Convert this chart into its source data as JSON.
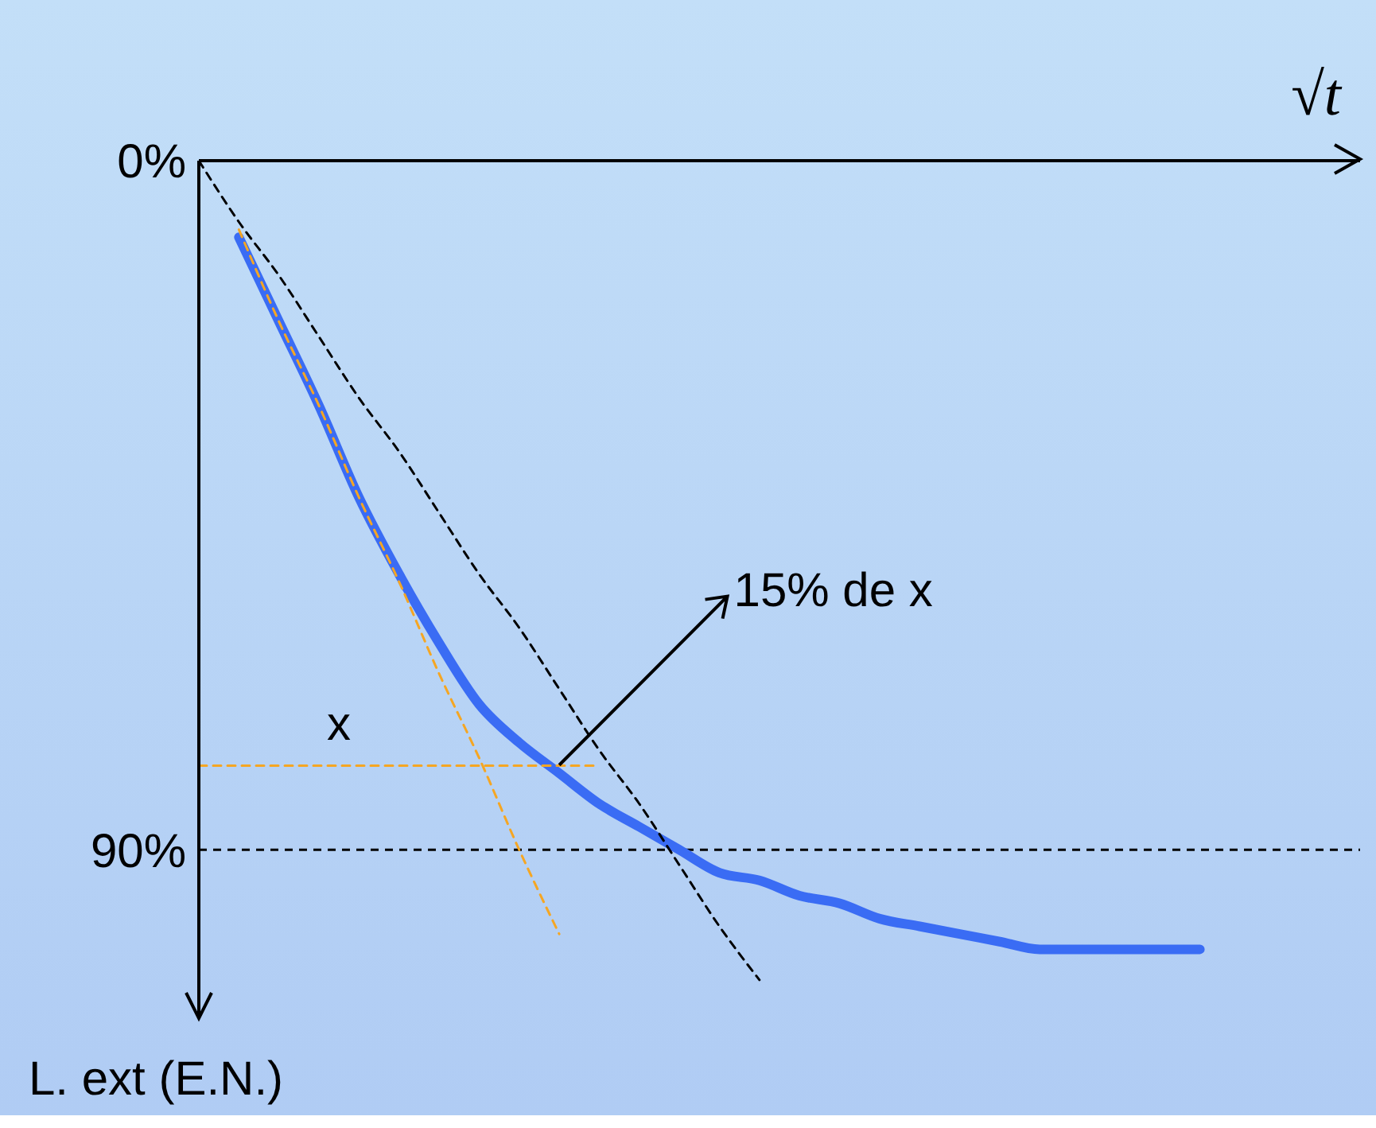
{
  "chart_data": {
    "type": "line",
    "xlabel": "√t",
    "ylabel": "L. ext (E.N.)",
    "categories": [
      null,
      null,
      null,
      null,
      null,
      null,
      null,
      null,
      null,
      null,
      null,
      null,
      null,
      null,
      null,
      null,
      null,
      null,
      null,
      null,
      null,
      null,
      null,
      null,
      null,
      null,
      null,
      null,
      null,
      null
    ],
    "series": [
      {
        "color": "#3a6cf4",
        "line_style": "solid",
        "values": [
          null,
          10,
          21,
          32,
          44,
          54,
          63,
          71,
          76,
          80,
          84,
          87,
          90,
          93,
          94,
          96,
          97,
          99,
          100,
          101,
          102,
          103,
          103,
          103,
          103,
          103,
          null,
          null,
          null,
          null
        ]
      },
      {
        "color": "#f5a623",
        "line_style": "dashed",
        "values": [
          null,
          9,
          21,
          32,
          44,
          55,
          67,
          78,
          90,
          101,
          null,
          null,
          null,
          null,
          null,
          null,
          null,
          null,
          null,
          null,
          null,
          null,
          null,
          null,
          null,
          null,
          null,
          null,
          null,
          null
        ]
      },
      {
        "color": "#000000",
        "line_style": "dashed",
        "values": [
          0,
          8,
          15,
          23,
          31,
          38,
          46,
          54,
          61,
          69,
          77,
          84,
          92,
          100,
          107,
          null,
          null,
          null,
          null,
          null,
          null,
          null,
          null,
          null,
          null,
          null,
          null,
          null,
          null,
          null
        ]
      },
      {
        "color": "#f5a623",
        "line_style": "dashed",
        "values": [
          79,
          null,
          null,
          null,
          null,
          null,
          null,
          null,
          null,
          null,
          79,
          null,
          null,
          null,
          null,
          null,
          null,
          null,
          null,
          null,
          null,
          null,
          null,
          null,
          null,
          null,
          null,
          null,
          null,
          null
        ]
      }
    ],
    "ylim": [
      112,
      0
    ],
    "yticks": [
      {
        "value": 0,
        "label": "0%"
      },
      {
        "value": 90,
        "label": "90%"
      }
    ],
    "ref_lines": [
      {
        "axis": "y",
        "value": 90,
        "color": "#000000",
        "line_style": "dashed"
      }
    ],
    "annotations": [
      "x",
      "15% de x"
    ],
    "marker": "none",
    "grid": false,
    "tick_labels": "y"
  }
}
